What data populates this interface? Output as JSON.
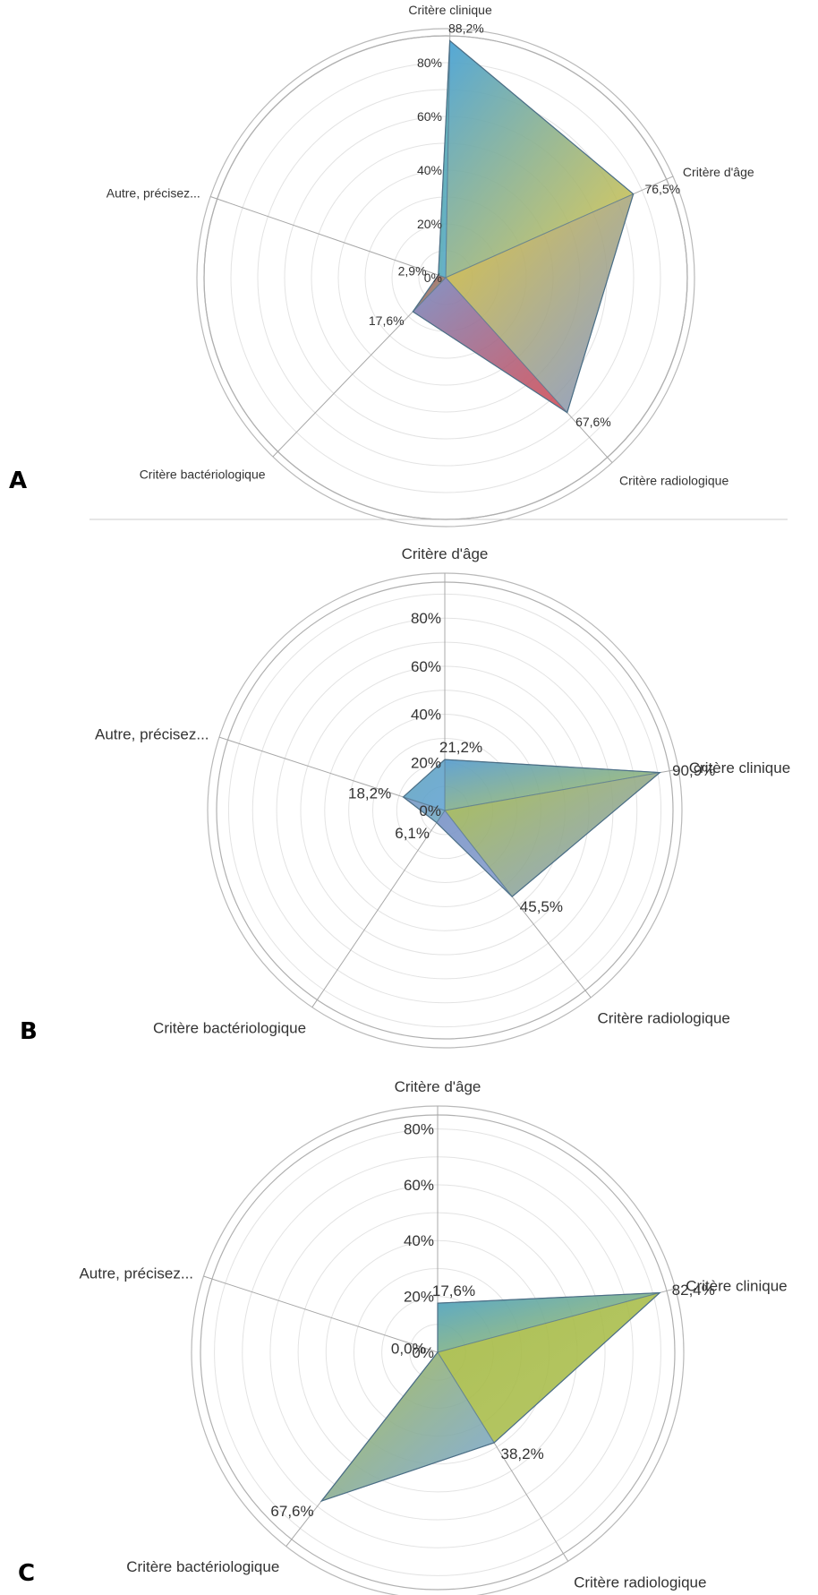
{
  "chart_data": [
    {
      "type": "radar",
      "panel_label": "A",
      "axes": [
        "Critère clinique",
        "Critère d'âge",
        "Critère radiologique",
        "Critère bactériologique",
        "Autre, précisez..."
      ],
      "values": [
        88.2,
        76.5,
        67.6,
        17.6,
        2.9
      ],
      "value_labels": [
        "88,2%",
        "76,5%",
        "67,6%",
        "17,6%",
        "2,9%"
      ],
      "ticks": [
        "0%",
        "20%",
        "40%",
        "60%",
        "80%"
      ],
      "rmax": 90,
      "segment_colors": [
        "#4aa3d6",
        "#d9c23a",
        "#7c8fc4",
        "#d0414a",
        "#5fae8a"
      ]
    },
    {
      "type": "radar",
      "panel_label": "B",
      "axes": [
        "Critère d'âge",
        "Critère clinique",
        "Critère radiologique",
        "Critère bactériologique",
        "Autre, précisez..."
      ],
      "values": [
        21.2,
        90.9,
        45.5,
        6.1,
        18.2
      ],
      "value_labels": [
        "21,2%",
        "90,9%",
        "45,5%",
        "6,1%",
        "18,2%"
      ],
      "ticks": [
        "0%",
        "20%",
        "40%",
        "60%",
        "80%"
      ],
      "rmax": 95,
      "segment_colors": [
        "#5b9fd0",
        "#a8bd4a",
        "#7f98c9",
        "#7f98c9",
        "#6aa9c0"
      ]
    },
    {
      "type": "radar",
      "panel_label": "C",
      "axes": [
        "Critère d'âge",
        "Critère clinique",
        "Critère radiologique",
        "Critère bactériologique",
        "Autre, précisez..."
      ],
      "values": [
        17.6,
        82.4,
        38.2,
        67.6,
        0.0
      ],
      "value_labels": [
        "17,6%",
        "82,4%",
        "38,2%",
        "67,6%",
        "0,0%"
      ],
      "ticks": [
        "0%",
        "20%",
        "40%",
        "60%",
        "80%"
      ],
      "rmax": 85,
      "segment_colors": [
        "#4ea3c8",
        "#a9bd4c",
        "#a9bd4c",
        "#6fa0d8",
        "#6fa0d8"
      ]
    }
  ]
}
